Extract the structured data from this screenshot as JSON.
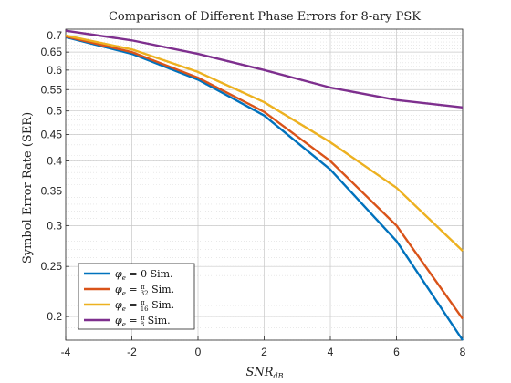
{
  "chart_data": {
    "type": "line",
    "title": "Comparison of Different Phase Errors for 8-ary PSK",
    "xlabel": {
      "base": "SNR",
      "subscript": "dB"
    },
    "ylabel": "Symbol Error Rate (SER)",
    "xlim": [
      -4,
      8
    ],
    "ylim": [
      0.18,
      0.72
    ],
    "yscale": "log",
    "grid": true,
    "legend_position": "bottom-left",
    "x": [
      -4,
      -2,
      0,
      2,
      4,
      6,
      8
    ],
    "x_ticks": [
      -4,
      -2,
      0,
      2,
      4,
      6,
      8
    ],
    "x_tick_labels": [
      "-4",
      "-2",
      "0",
      "2",
      "4",
      "6",
      "8"
    ],
    "y_ticks": [
      0.2,
      0.25,
      0.3,
      0.35,
      0.4,
      0.45,
      0.5,
      0.55,
      0.6,
      0.65,
      0.7
    ],
    "y_tick_labels": [
      "0.2",
      "0.25",
      "0.3",
      "0.35",
      "0.4",
      "0.45",
      "0.5",
      "0.55",
      "0.6",
      "0.65",
      "0.7"
    ],
    "series": [
      {
        "name": "φe = 0 Sim.",
        "legend": {
          "lhs": "φ",
          "lhs_sub": "e",
          "eq": " = ",
          "num": "",
          "den": "",
          "rhs": "0",
          "suffix": " Sim."
        },
        "color": "#0072BD",
        "values": [
          0.695,
          0.645,
          0.575,
          0.49,
          0.385,
          0.28,
          0.18
        ]
      },
      {
        "name": "φe = π/32 Sim.",
        "legend": {
          "lhs": "φ",
          "lhs_sub": "e",
          "eq": " = ",
          "num": "π",
          "den": "32",
          "rhs": "",
          "suffix": " Sim."
        },
        "color": "#D95319",
        "values": [
          0.697,
          0.65,
          0.58,
          0.498,
          0.4,
          0.3,
          0.198
        ]
      },
      {
        "name": "φe = π/16 Sim.",
        "legend": {
          "lhs": "φ",
          "lhs_sub": "e",
          "eq": " = ",
          "num": "π",
          "den": "16",
          "rhs": "",
          "suffix": " Sim."
        },
        "color": "#EDB120",
        "values": [
          0.7,
          0.658,
          0.595,
          0.52,
          0.435,
          0.355,
          0.268
        ]
      },
      {
        "name": "φe = π/8 Sim.",
        "legend": {
          "lhs": "φ",
          "lhs_sub": "e",
          "eq": " = ",
          "num": "π",
          "den": "8",
          "rhs": "",
          "suffix": " Sim."
        },
        "color": "#7E2F8E",
        "values": [
          0.715,
          0.685,
          0.645,
          0.6,
          0.555,
          0.525,
          0.508
        ]
      }
    ]
  }
}
